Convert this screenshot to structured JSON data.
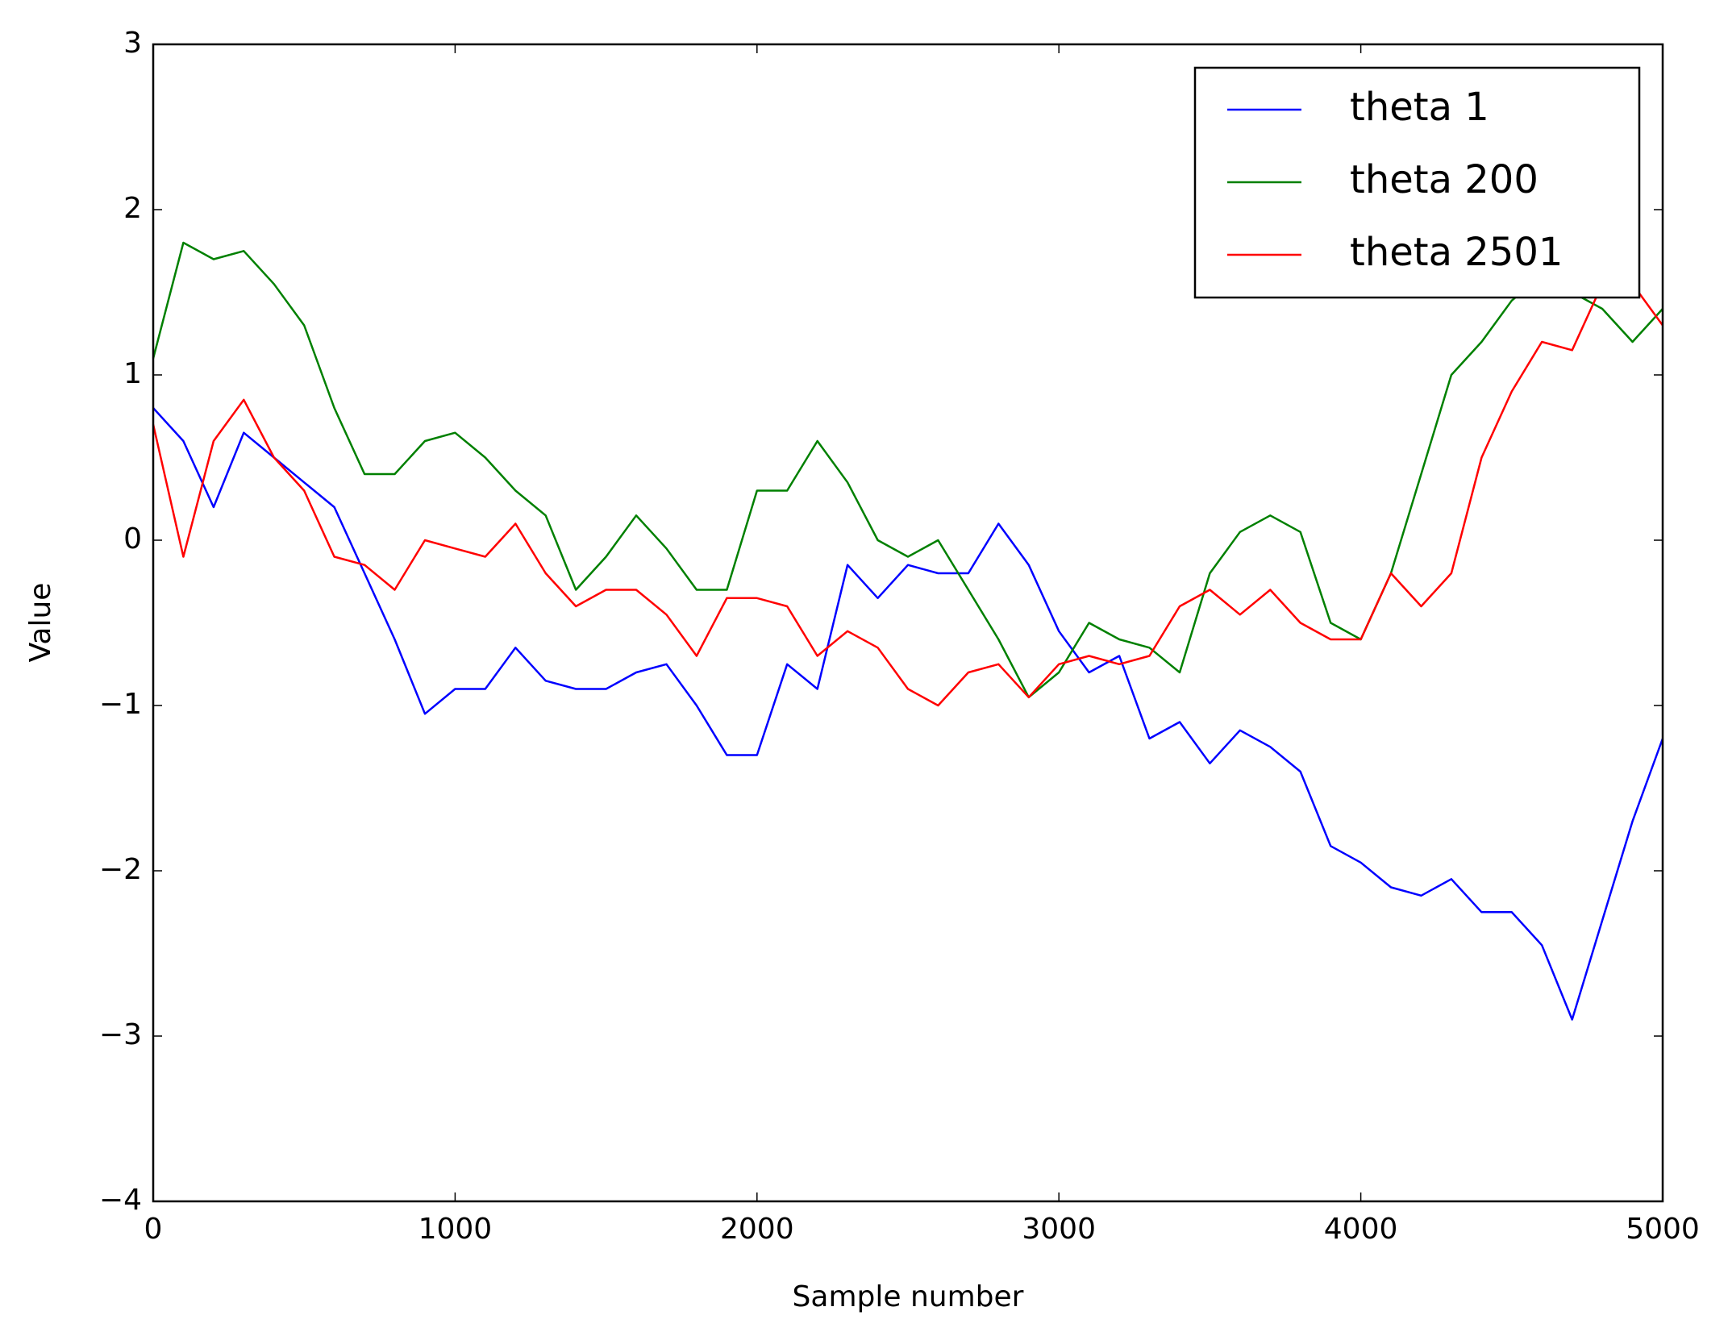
{
  "chart_data": {
    "type": "line",
    "xlabel": "Sample number",
    "ylabel": "Value",
    "x": [
      0,
      100,
      200,
      300,
      400,
      500,
      600,
      700,
      800,
      900,
      1000,
      1100,
      1200,
      1300,
      1400,
      1500,
      1600,
      1700,
      1800,
      1900,
      2000,
      2100,
      2200,
      2300,
      2400,
      2500,
      2600,
      2700,
      2800,
      2900,
      3000,
      3100,
      3200,
      3300,
      3400,
      3500,
      3600,
      3700,
      3800,
      3900,
      4000,
      4100,
      4200,
      4300,
      4400,
      4500,
      4600,
      4700,
      4800,
      4900,
      5000
    ],
    "series": [
      {
        "name": "theta 1",
        "color": "#0000ff",
        "values": [
          0.8,
          0.6,
          0.2,
          0.65,
          0.5,
          0.35,
          0.2,
          -0.2,
          -0.6,
          -1.05,
          -0.9,
          -0.9,
          -0.65,
          -0.85,
          -0.9,
          -0.9,
          -0.8,
          -0.75,
          -1.0,
          -1.3,
          -1.3,
          -0.75,
          -0.9,
          -0.15,
          -0.35,
          -0.15,
          -0.2,
          -0.2,
          0.1,
          -0.15,
          -0.55,
          -0.8,
          -0.7,
          -1.2,
          -1.1,
          -1.35,
          -1.15,
          -1.25,
          -1.4,
          -1.85,
          -1.95,
          -2.1,
          -2.15,
          -2.05,
          -2.25,
          -2.25,
          -2.45,
          -2.9,
          -2.3,
          -1.7,
          -1.2
        ]
      },
      {
        "name": "theta 200",
        "color": "#008000",
        "values": [
          1.1,
          1.8,
          1.7,
          1.75,
          1.55,
          1.3,
          0.8,
          0.4,
          0.4,
          0.6,
          0.65,
          0.5,
          0.3,
          0.15,
          -0.3,
          -0.1,
          0.15,
          -0.05,
          -0.3,
          -0.3,
          0.3,
          0.3,
          0.6,
          0.35,
          0.0,
          -0.1,
          0.0,
          -0.3,
          -0.6,
          -0.95,
          -0.8,
          -0.5,
          -0.6,
          -0.65,
          -0.8,
          -0.2,
          0.05,
          0.15,
          0.05,
          -0.5,
          -0.6,
          -0.2,
          0.4,
          1.0,
          1.2,
          1.45,
          1.6,
          1.5,
          1.4,
          1.2,
          1.4
        ]
      },
      {
        "name": "theta 2501",
        "color": "#ff0000",
        "values": [
          0.7,
          -0.1,
          0.6,
          0.85,
          0.5,
          0.3,
          -0.1,
          -0.15,
          -0.3,
          0.0,
          -0.05,
          -0.1,
          0.1,
          -0.2,
          -0.4,
          -0.3,
          -0.3,
          -0.45,
          -0.7,
          -0.35,
          -0.35,
          -0.4,
          -0.7,
          -0.55,
          -0.65,
          -0.9,
          -1.0,
          -0.8,
          -0.75,
          -0.95,
          -0.75,
          -0.7,
          -0.75,
          -0.7,
          -0.4,
          -0.3,
          -0.45,
          -0.3,
          -0.5,
          -0.6,
          -0.6,
          -0.2,
          -0.4,
          -0.2,
          0.5,
          0.9,
          1.2,
          1.15,
          1.55,
          1.55,
          1.3
        ]
      }
    ],
    "xlim": [
      0,
      5000
    ],
    "xticks": [
      0,
      1000,
      2000,
      3000,
      4000,
      5000
    ],
    "ylim": [
      -4,
      3
    ],
    "yticks": [
      {
        "value": -4,
        "label": "−4"
      },
      {
        "value": -3,
        "label": "−3"
      },
      {
        "value": -2,
        "label": "−2"
      },
      {
        "value": -1,
        "label": "−1"
      },
      0,
      1,
      2,
      3
    ],
    "grid": false,
    "legend": "upper right"
  }
}
